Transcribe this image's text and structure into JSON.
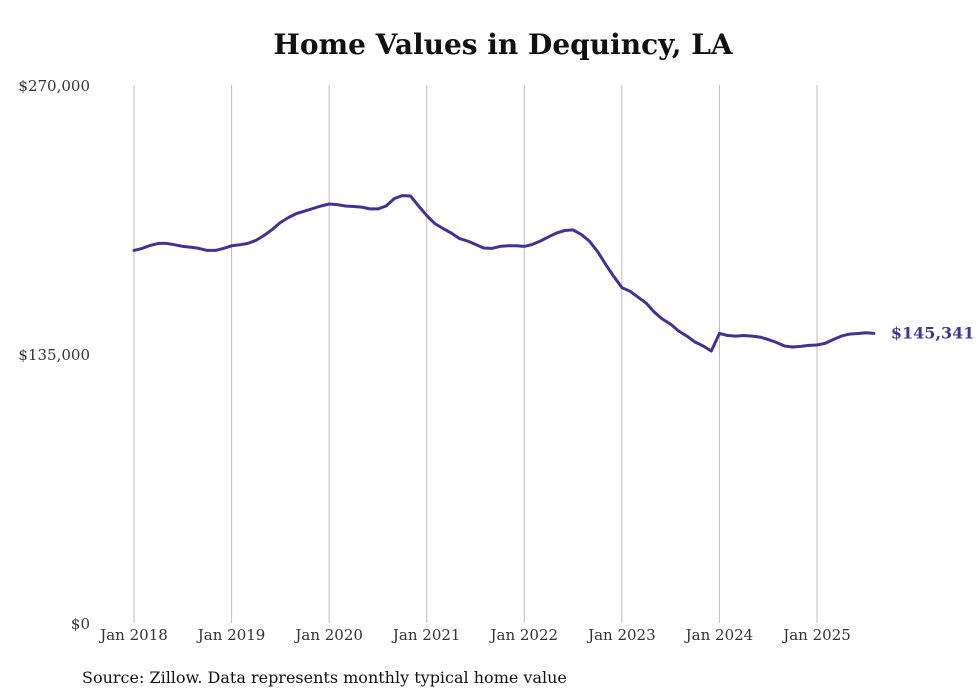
{
  "chart_data": {
    "type": "line",
    "title": "Home Values in Dequincy, LA",
    "xlabel": "",
    "ylabel": "",
    "ylim": [
      0,
      270000
    ],
    "y_ticks": [
      0,
      135000,
      270000
    ],
    "y_tick_labels": [
      "$0",
      "$135,000",
      "$270,000"
    ],
    "x_ticks": [
      "2018-01",
      "2019-01",
      "2020-01",
      "2021-01",
      "2022-01",
      "2023-01",
      "2024-01",
      "2025-01"
    ],
    "x_tick_labels": [
      "Jan 2018",
      "Jan 2019",
      "Jan 2020",
      "Jan 2021",
      "Jan 2022",
      "Jan 2023",
      "Jan 2024",
      "Jan 2025"
    ],
    "grid": "vertical",
    "series": [
      {
        "color": "#3d3592",
        "end_label": "$145,341",
        "points": [
          [
            "2018-01",
            187000
          ],
          [
            "2018-02",
            188000
          ],
          [
            "2018-03",
            189500
          ],
          [
            "2018-04",
            190500
          ],
          [
            "2018-05",
            190500
          ],
          [
            "2018-06",
            189800
          ],
          [
            "2018-07",
            189000
          ],
          [
            "2018-08",
            188600
          ],
          [
            "2018-09",
            188000
          ],
          [
            "2018-10",
            187000
          ],
          [
            "2018-11",
            187000
          ],
          [
            "2018-12",
            188000
          ],
          [
            "2019-01",
            189300
          ],
          [
            "2019-02",
            189800
          ],
          [
            "2019-03",
            190500
          ],
          [
            "2019-04",
            192000
          ],
          [
            "2019-05",
            194500
          ],
          [
            "2019-06",
            197500
          ],
          [
            "2019-07",
            201000
          ],
          [
            "2019-08",
            203500
          ],
          [
            "2019-09",
            205500
          ],
          [
            "2019-10",
            206700
          ],
          [
            "2019-11",
            208000
          ],
          [
            "2019-12",
            209300
          ],
          [
            "2020-01",
            210300
          ],
          [
            "2020-02",
            210000
          ],
          [
            "2020-03",
            209300
          ],
          [
            "2020-04",
            209000
          ],
          [
            "2020-05",
            208700
          ],
          [
            "2020-06",
            207800
          ],
          [
            "2020-07",
            207800
          ],
          [
            "2020-08",
            209300
          ],
          [
            "2020-09",
            213000
          ],
          [
            "2020-10",
            214500
          ],
          [
            "2020-11",
            214300
          ],
          [
            "2020-12",
            209300
          ],
          [
            "2021-01",
            204500
          ],
          [
            "2021-02",
            200500
          ],
          [
            "2021-03",
            198000
          ],
          [
            "2021-04",
            195800
          ],
          [
            "2021-05",
            193000
          ],
          [
            "2021-06",
            191700
          ],
          [
            "2021-07",
            190000
          ],
          [
            "2021-08",
            188200
          ],
          [
            "2021-09",
            188000
          ],
          [
            "2021-10",
            189000
          ],
          [
            "2021-11",
            189300
          ],
          [
            "2021-12",
            189300
          ],
          [
            "2022-01",
            189000
          ],
          [
            "2022-02",
            190000
          ],
          [
            "2022-03",
            191700
          ],
          [
            "2022-04",
            193800
          ],
          [
            "2022-05",
            195800
          ],
          [
            "2022-06",
            197000
          ],
          [
            "2022-07",
            197300
          ],
          [
            "2022-08",
            195000
          ],
          [
            "2022-09",
            191700
          ],
          [
            "2022-10",
            186500
          ],
          [
            "2022-11",
            180000
          ],
          [
            "2022-12",
            174000
          ],
          [
            "2023-01",
            168300
          ],
          [
            "2023-02",
            166500
          ],
          [
            "2023-03",
            163500
          ],
          [
            "2023-04",
            160500
          ],
          [
            "2023-05",
            156000
          ],
          [
            "2023-06",
            152500
          ],
          [
            "2023-07",
            150000
          ],
          [
            "2023-08",
            146500
          ],
          [
            "2023-09",
            144000
          ],
          [
            "2023-10",
            141000
          ],
          [
            "2023-11",
            139000
          ],
          [
            "2023-12",
            136500
          ],
          [
            "2024-01",
            145341
          ],
          [
            "2024-02",
            144300
          ],
          [
            "2024-03",
            144000
          ],
          [
            "2024-04",
            144300
          ],
          [
            "2024-05",
            144000
          ],
          [
            "2024-06",
            143500
          ],
          [
            "2024-07",
            142300
          ],
          [
            "2024-08",
            140800
          ],
          [
            "2024-09",
            139000
          ],
          [
            "2024-10",
            138500
          ],
          [
            "2024-11",
            138800
          ],
          [
            "2024-12",
            139300
          ],
          [
            "2025-01",
            139500
          ],
          [
            "2025-02",
            140300
          ],
          [
            "2025-03",
            142300
          ],
          [
            "2025-04",
            144000
          ],
          [
            "2025-05",
            145000
          ],
          [
            "2025-06",
            145300
          ],
          [
            "2025-07",
            145700
          ],
          [
            "2025-08",
            145341
          ]
        ]
      }
    ]
  },
  "footer": {
    "source": "Source: Zillow. Data represents monthly typical home value"
  }
}
